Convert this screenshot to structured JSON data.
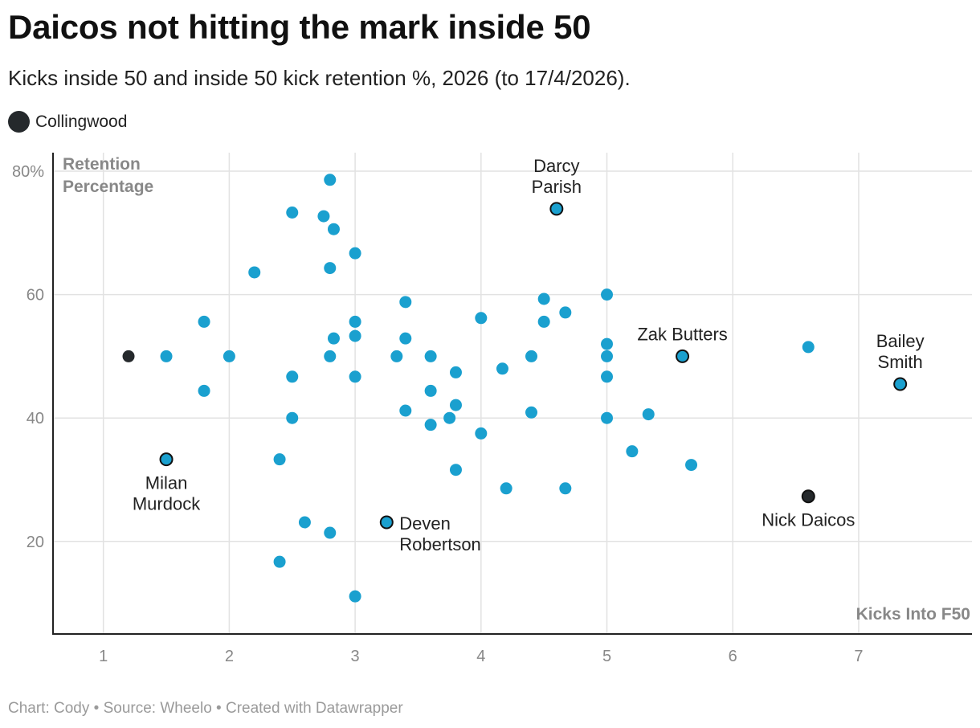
{
  "header": {
    "title": "Daicos not hitting the mark inside 50",
    "subtitle": "Kicks inside 50 and inside 50 kick retention %, 2026 (to 17/4/2026)."
  },
  "legend": {
    "label": "Collingwood",
    "color": "#25292c"
  },
  "footer": {
    "credit": "Chart: Cody • Source: Wheelo • Created with Datawrapper"
  },
  "colors": {
    "default_point": "#1aa0cf",
    "collingwood_point": "#25292c",
    "highlight_outline": "#111111",
    "grid": "#e2e2e2",
    "axis": "#222222"
  },
  "chart_data": {
    "type": "scatter",
    "xlabel": "Kicks Into F50",
    "ylabel_lines": [
      "Retention",
      "Percentage"
    ],
    "xlim": [
      0.6,
      7.9
    ],
    "ylim": [
      5,
      83
    ],
    "xticks": [
      1,
      2,
      3,
      4,
      5,
      6,
      7
    ],
    "xtick_labels": [
      "1",
      "2",
      "3",
      "4",
      "5",
      "6",
      "7"
    ],
    "yticks": [
      20,
      40,
      60,
      80
    ],
    "ytick_labels": [
      "20",
      "40",
      "60",
      "80%"
    ],
    "grid": true,
    "points": [
      {
        "x": 2.8,
        "y": 78.6
      },
      {
        "x": 2.5,
        "y": 73.3
      },
      {
        "x": 2.75,
        "y": 72.7
      },
      {
        "x": 2.83,
        "y": 70.6
      },
      {
        "x": 3.0,
        "y": 66.7
      },
      {
        "x": 2.2,
        "y": 63.6
      },
      {
        "x": 2.8,
        "y": 64.3
      },
      {
        "x": 3.4,
        "y": 58.8
      },
      {
        "x": 4.5,
        "y": 59.3
      },
      {
        "x": 5.0,
        "y": 60.0
      },
      {
        "x": 4.67,
        "y": 57.1
      },
      {
        "x": 4.0,
        "y": 56.2
      },
      {
        "x": 4.5,
        "y": 55.6
      },
      {
        "x": 1.8,
        "y": 55.6
      },
      {
        "x": 3.0,
        "y": 55.6
      },
      {
        "x": 3.0,
        "y": 53.3
      },
      {
        "x": 2.83,
        "y": 52.9
      },
      {
        "x": 3.4,
        "y": 52.9
      },
      {
        "x": 5.0,
        "y": 52.0
      },
      {
        "x": 6.6,
        "y": 51.5
      },
      {
        "x": 1.5,
        "y": 50.0
      },
      {
        "x": 2.0,
        "y": 50.0
      },
      {
        "x": 2.8,
        "y": 50.0
      },
      {
        "x": 3.33,
        "y": 50.0
      },
      {
        "x": 3.6,
        "y": 50.0
      },
      {
        "x": 4.4,
        "y": 50.0
      },
      {
        "x": 5.0,
        "y": 50.0
      },
      {
        "x": 4.17,
        "y": 48.0
      },
      {
        "x": 3.8,
        "y": 47.4
      },
      {
        "x": 2.5,
        "y": 46.7
      },
      {
        "x": 3.0,
        "y": 46.7
      },
      {
        "x": 5.0,
        "y": 46.7
      },
      {
        "x": 1.8,
        "y": 44.4
      },
      {
        "x": 3.6,
        "y": 44.4
      },
      {
        "x": 3.8,
        "y": 42.1
      },
      {
        "x": 3.4,
        "y": 41.2
      },
      {
        "x": 4.4,
        "y": 40.9
      },
      {
        "x": 5.33,
        "y": 40.6
      },
      {
        "x": 2.5,
        "y": 40.0
      },
      {
        "x": 3.75,
        "y": 40.0
      },
      {
        "x": 5.0,
        "y": 40.0
      },
      {
        "x": 3.6,
        "y": 38.9
      },
      {
        "x": 4.0,
        "y": 37.5
      },
      {
        "x": 5.2,
        "y": 34.6
      },
      {
        "x": 2.4,
        "y": 33.3
      },
      {
        "x": 5.67,
        "y": 32.4
      },
      {
        "x": 3.8,
        "y": 31.6
      },
      {
        "x": 4.2,
        "y": 28.6
      },
      {
        "x": 4.67,
        "y": 28.6
      },
      {
        "x": 2.6,
        "y": 23.1
      },
      {
        "x": 2.8,
        "y": 21.4
      },
      {
        "x": 2.4,
        "y": 16.7
      },
      {
        "x": 3.0,
        "y": 11.1
      },
      {
        "x": 1.2,
        "y": 50.0,
        "group": "Collingwood"
      },
      {
        "x": 4.6,
        "y": 73.9,
        "label": "Darcy Parish",
        "label_lines": [
          "Darcy",
          "Parish"
        ],
        "label_pos": "above",
        "highlight": true
      },
      {
        "x": 5.6,
        "y": 50.0,
        "label": "Zak Butters",
        "label_lines": [
          "Zak Butters"
        ],
        "label_pos": "above",
        "highlight": true
      },
      {
        "x": 7.33,
        "y": 45.5,
        "label": "Bailey Smith",
        "label_lines": [
          "Bailey",
          "Smith"
        ],
        "label_pos": "above",
        "highlight": true
      },
      {
        "x": 1.5,
        "y": 33.3,
        "label": "Milan Murdock",
        "label_lines": [
          "Milan",
          "Murdock"
        ],
        "label_pos": "below",
        "highlight": true
      },
      {
        "x": 3.25,
        "y": 23.1,
        "label": "Deven Robertson",
        "label_lines": [
          "Deven",
          "Robertson"
        ],
        "label_pos": "right",
        "highlight": true
      },
      {
        "x": 6.6,
        "y": 27.3,
        "label": "Nick Daicos",
        "label_lines": [
          "Nick Daicos"
        ],
        "label_pos": "below",
        "highlight": true,
        "group": "Collingwood"
      }
    ]
  }
}
